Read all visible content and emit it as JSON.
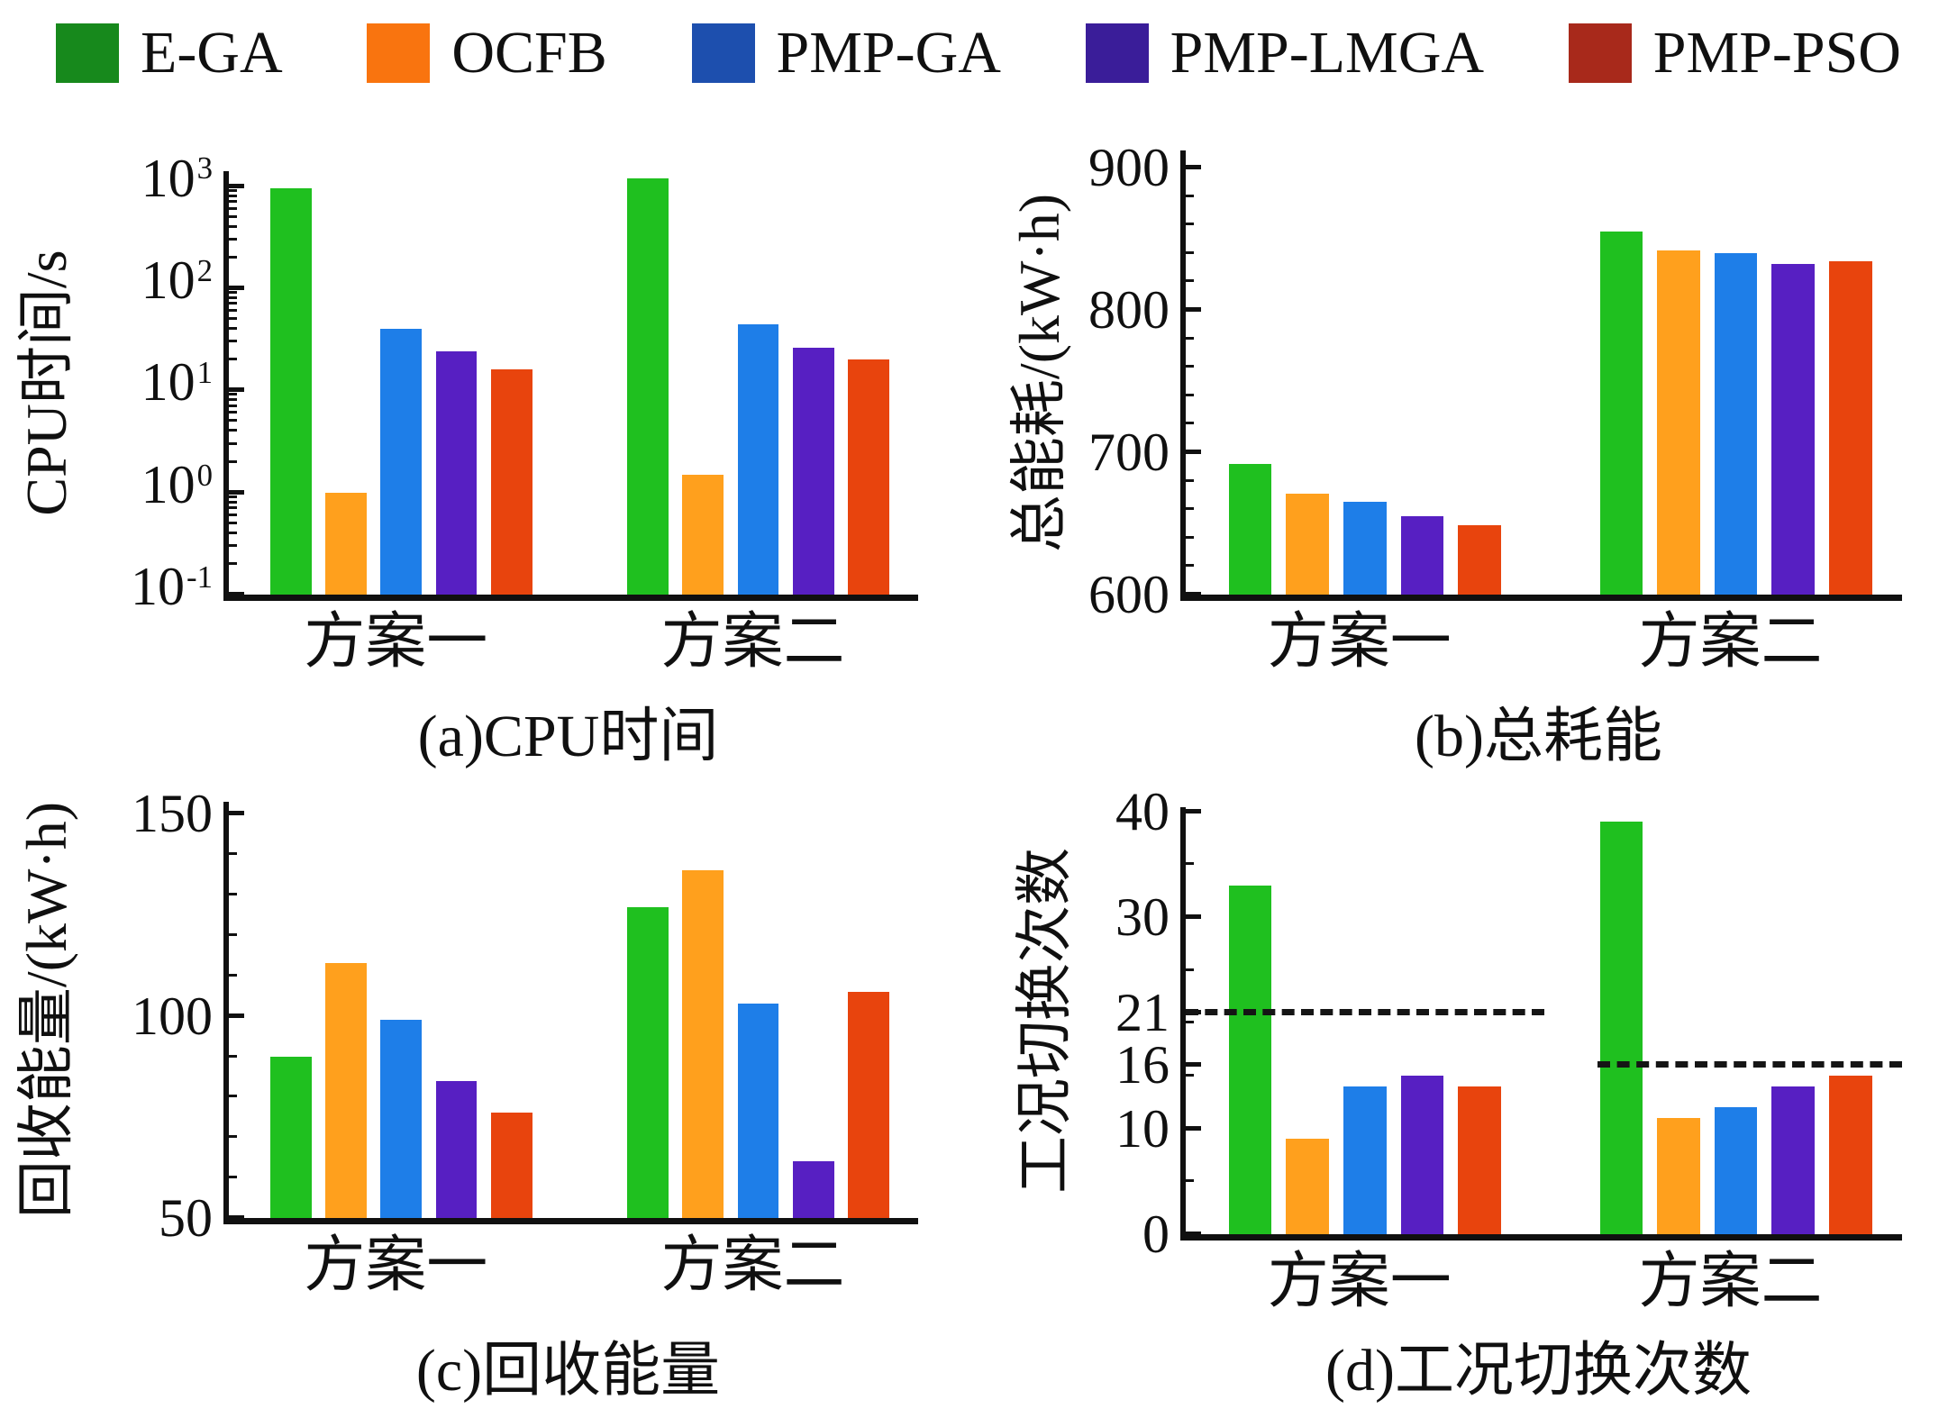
{
  "legend": {
    "items": [
      {
        "label": "E-GA",
        "swatch_color": "#17891c",
        "bar_color": "#1fc01f"
      },
      {
        "label": "OCFB",
        "swatch_color": "#f9740f",
        "bar_color": "#ffa01d"
      },
      {
        "label": "PMP-GA",
        "swatch_color": "#1d4fae",
        "bar_color": "#1e7ee8"
      },
      {
        "label": "PMP-LMGA",
        "swatch_color": "#3a1d99",
        "bar_color": "#571fc2"
      },
      {
        "label": "PMP-PSO",
        "swatch_color": "#a8291b",
        "bar_color": "#e8440d"
      }
    ]
  },
  "chart_data": [
    {
      "id": "a",
      "type": "bar",
      "scale": "log",
      "title": "(a)CPU时间",
      "ylabel": "CPU时间/s",
      "categories": [
        "方案一",
        "方案二"
      ],
      "ylim": [
        0.1,
        1400
      ],
      "yticks": [
        {
          "label": "10^3",
          "value": 1000
        },
        {
          "label": "10^2",
          "value": 100
        },
        {
          "label": "10^1",
          "value": 10
        },
        {
          "label": "10^0",
          "value": 1
        },
        {
          "label": "10^-1",
          "value": 0.1
        }
      ],
      "series": [
        {
          "name": "E-GA",
          "values": [
            950,
            1200
          ]
        },
        {
          "name": "OCFB",
          "values": [
            1.0,
            1.5
          ]
        },
        {
          "name": "PMP-GA",
          "values": [
            40,
            44
          ]
        },
        {
          "name": "PMP-LMGA",
          "values": [
            24,
            26
          ]
        },
        {
          "name": "PMP-PSO",
          "values": [
            16,
            20
          ]
        }
      ]
    },
    {
      "id": "b",
      "type": "bar",
      "scale": "linear",
      "title": "(b)总耗能",
      "ylabel": "总能耗/(kW·h)",
      "categories": [
        "方案一",
        "方案二"
      ],
      "ylim": [
        600,
        912
      ],
      "minor_step": 20,
      "yticks": [
        {
          "label": "900",
          "value": 900
        },
        {
          "label": "800",
          "value": 800
        },
        {
          "label": "700",
          "value": 700
        },
        {
          "label": "600",
          "value": 600
        }
      ],
      "series": [
        {
          "name": "E-GA",
          "values": [
            692,
            855
          ]
        },
        {
          "name": "OCFB",
          "values": [
            671,
            842
          ]
        },
        {
          "name": "PMP-GA",
          "values": [
            665,
            840
          ]
        },
        {
          "name": "PMP-LMGA",
          "values": [
            655,
            832
          ]
        },
        {
          "name": "PMP-PSO",
          "values": [
            649,
            834
          ]
        }
      ]
    },
    {
      "id": "c",
      "type": "bar",
      "scale": "linear",
      "title": "(c)回收能量",
      "ylabel": "回收能量/(kW·h)",
      "categories": [
        "方案一",
        "方案二"
      ],
      "ylim": [
        50,
        153
      ],
      "minor_step": 10,
      "yticks": [
        {
          "label": "150",
          "value": 150
        },
        {
          "label": "100",
          "value": 100
        },
        {
          "label": "50",
          "value": 50
        }
      ],
      "series": [
        {
          "name": "E-GA",
          "values": [
            90,
            127
          ]
        },
        {
          "name": "OCFB",
          "values": [
            113,
            136
          ]
        },
        {
          "name": "PMP-GA",
          "values": [
            99,
            103
          ]
        },
        {
          "name": "PMP-LMGA",
          "values": [
            84,
            64
          ]
        },
        {
          "name": "PMP-PSO",
          "values": [
            76,
            106
          ]
        }
      ]
    },
    {
      "id": "d",
      "type": "bar",
      "scale": "linear",
      "title": "(d)工况切换次数",
      "ylabel": "工况切换次数",
      "categories": [
        "方案一",
        "方案二"
      ],
      "ylim": [
        0,
        40.4
      ],
      "minor_step": 5,
      "yticks": [
        {
          "label": "40",
          "value": 40
        },
        {
          "label": "30",
          "value": 30
        },
        {
          "label": "21",
          "value": 21
        },
        {
          "label": "16",
          "value": 16
        },
        {
          "label": "10",
          "value": 10
        },
        {
          "label": "0",
          "value": 0
        }
      ],
      "dashed_lines": [
        {
          "value": 21,
          "x_start": 0.0,
          "x_end": 0.5
        },
        {
          "value": 16,
          "x_start": 0.575,
          "x_end": 1.0
        }
      ],
      "series": [
        {
          "name": "E-GA",
          "values": [
            33,
            39
          ]
        },
        {
          "name": "OCFB",
          "values": [
            9,
            11
          ]
        },
        {
          "name": "PMP-GA",
          "values": [
            14,
            12
          ]
        },
        {
          "name": "PMP-LMGA",
          "values": [
            15,
            14
          ]
        },
        {
          "name": "PMP-PSO",
          "values": [
            14,
            15
          ]
        }
      ]
    }
  ]
}
